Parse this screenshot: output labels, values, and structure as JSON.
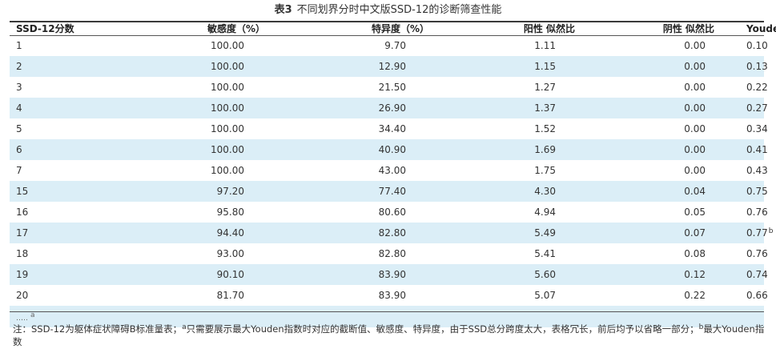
{
  "title": {
    "number": "表3",
    "text": "不同划界分时中文版SSD-12的诊断筛查性能"
  },
  "headers": [
    "SSD-12分数",
    "敏感度（%）",
    "特异度（%）",
    "阳性 似然比",
    "阴性 似然比",
    "Youden 指数"
  ],
  "rows": [
    [
      "1",
      "100.00",
      "9.70",
      "1.11",
      "0.00",
      "0.10"
    ],
    [
      "2",
      "100.00",
      "12.90",
      "1.15",
      "0.00",
      "0.13"
    ],
    [
      "3",
      "100.00",
      "21.50",
      "1.27",
      "0.00",
      "0.22"
    ],
    [
      "4",
      "100.00",
      "26.90",
      "1.37",
      "0.00",
      "0.27"
    ],
    [
      "5",
      "100.00",
      "34.40",
      "1.52",
      "0.00",
      "0.34"
    ],
    [
      "6",
      "100.00",
      "40.90",
      "1.69",
      "0.00",
      "0.41"
    ],
    [
      "7",
      "100.00",
      "43.00",
      "1.75",
      "0.00",
      "0.43"
    ],
    [
      "15",
      "97.20",
      "77.40",
      "4.30",
      "0.04",
      "0.75"
    ],
    [
      "16",
      "95.80",
      "80.60",
      "4.94",
      "0.05",
      "0.76"
    ],
    [
      "17",
      "94.40",
      "82.80",
      "5.49",
      "0.07",
      "0.77"
    ],
    [
      "18",
      "93.00",
      "82.80",
      "5.41",
      "0.08",
      "0.76"
    ],
    [
      "19",
      "90.10",
      "83.90",
      "5.60",
      "0.12",
      "0.74"
    ],
    [
      "20",
      "81.70",
      "83.90",
      "5.07",
      "0.22",
      "0.66"
    ]
  ],
  "row17_footnote": "b",
  "ellipsis": {
    "dots": "……",
    "footnote": "a"
  },
  "note": {
    "part1": "注：SSD-12为躯体症状障碍B标准量表；",
    "sup_a": "a",
    "part2": "只需要展示最大Youden指数时对应的截断值、敏感度、特异度，由于SSD总分跨度太大，表格冗长，前后均予以省略一部分；",
    "sup_b": "b",
    "part3": "最大Youden指数"
  },
  "colors": {
    "stripe": "#dbeef7",
    "text": "#333333",
    "rule": "#3a3a3a"
  }
}
